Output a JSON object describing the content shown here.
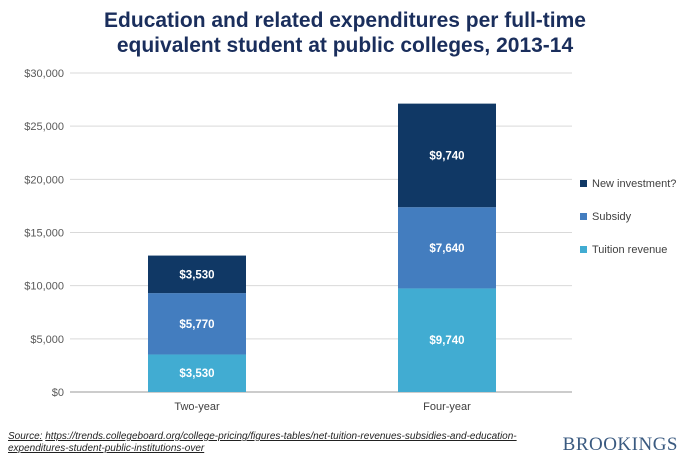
{
  "chart_data": {
    "type": "bar",
    "stacked": true,
    "title_lines": [
      "Education and related expenditures per full-time",
      "equivalent student at public colleges, 2013-14"
    ],
    "categories": [
      "Two-year",
      "Four-year"
    ],
    "series": [
      {
        "name": "Tuition revenue",
        "values": [
          3530,
          9740
        ],
        "labels": [
          "$3,530",
          "$9,740"
        ],
        "color": "#41acd2"
      },
      {
        "name": "Subsidy",
        "values": [
          5770,
          7640
        ],
        "labels": [
          "$5,770",
          "$7,640"
        ],
        "color": "#437dbf"
      },
      {
        "name": "New investment?",
        "values": [
          3530,
          9740
        ],
        "labels": [
          "$3,530",
          "$9,740"
        ],
        "color": "#103865"
      }
    ],
    "ylim": [
      0,
      30000
    ],
    "yticks": [
      0,
      5000,
      10000,
      15000,
      20000,
      25000,
      30000
    ],
    "ytick_labels": [
      "$0",
      "$5,000",
      "$10,000",
      "$15,000",
      "$20,000",
      "$25,000",
      "$30,000"
    ],
    "xlabel": "",
    "ylabel": "",
    "grid": true,
    "legend_position": "right",
    "legend_order": [
      "New investment?",
      "Subsidy",
      "Tuition revenue"
    ]
  },
  "source": {
    "label": "Source:",
    "url": "https://trends.collegeboard.org/college-pricing/figures-tables/net-tuition-revenues-subsidies-and-education-expenditures-student-public-institutions-over"
  },
  "logo_text": "BROOKINGS"
}
